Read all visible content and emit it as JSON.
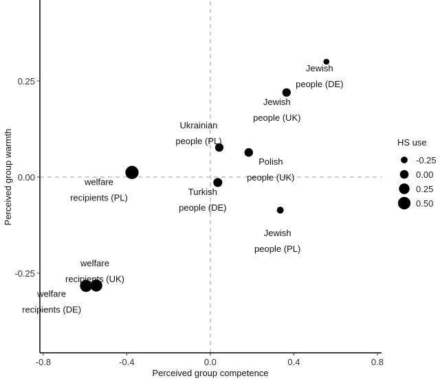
{
  "chart_data": {
    "type": "scatter",
    "title": "",
    "xlabel": "Perceived group competence",
    "ylabel": "Perceived group warmth",
    "xlim": [
      -0.816,
      0.82
    ],
    "ylim": [
      -0.457,
      0.457
    ],
    "xticks": [
      -0.8,
      -0.4,
      0.0,
      0.4,
      0.8
    ],
    "xtick_labels": [
      "-0.8",
      "-0.4",
      "0.0",
      "0.4",
      "0.8"
    ],
    "yticks": [
      -0.25,
      0.0,
      0.25
    ],
    "ytick_labels": [
      "-0.25",
      "0.00",
      "0.25"
    ],
    "reference_lines": {
      "x": 0.0,
      "y": 0.0,
      "style": "dashed"
    },
    "grid": false,
    "size_legend": {
      "title": "HS use",
      "placement": "right",
      "entries": [
        {
          "label": "-0.25",
          "value": -0.25
        },
        {
          "label": "0.00",
          "value": 0.0
        },
        {
          "label": "0.25",
          "value": 0.25
        },
        {
          "label": "0.50",
          "value": 0.5
        }
      ]
    },
    "points": [
      {
        "label_lines": [
          "Jewish",
          "people (DE)"
        ],
        "x": 0.556,
        "y": 0.3,
        "hs_use": -0.45
      },
      {
        "label_lines": [
          "Jewish",
          "people (UK)"
        ],
        "x": 0.365,
        "y": 0.22,
        "hs_use": -0.12
      },
      {
        "label_lines": [
          "Ukrainian",
          "people (PL)"
        ],
        "x": 0.043,
        "y": 0.077,
        "hs_use": -0.12
      },
      {
        "label_lines": [
          "Polish",
          "people (UK)"
        ],
        "x": 0.184,
        "y": 0.064,
        "hs_use": -0.1
      },
      {
        "label_lines": [
          "welfare",
          "recipients (PL)"
        ],
        "x": -0.375,
        "y": 0.012,
        "hs_use": 0.5
      },
      {
        "label_lines": [
          "Turkish",
          "people (DE)"
        ],
        "x": 0.036,
        "y": -0.014,
        "hs_use": -0.05
      },
      {
        "label_lines": [
          "Jewish",
          "people (PL)"
        ],
        "x": 0.335,
        "y": -0.086,
        "hs_use": -0.32
      },
      {
        "label_lines": [
          "welfare",
          "recipients (UK)"
        ],
        "x": -0.546,
        "y": -0.282,
        "hs_use": 0.35
      },
      {
        "label_lines": [
          "welfare",
          "recipients (DE)"
        ],
        "x": -0.595,
        "y": -0.283,
        "hs_use": 0.35
      }
    ],
    "colors": {
      "points": "#000000",
      "axis": "#000000",
      "reference": "#b0b0b0"
    }
  }
}
